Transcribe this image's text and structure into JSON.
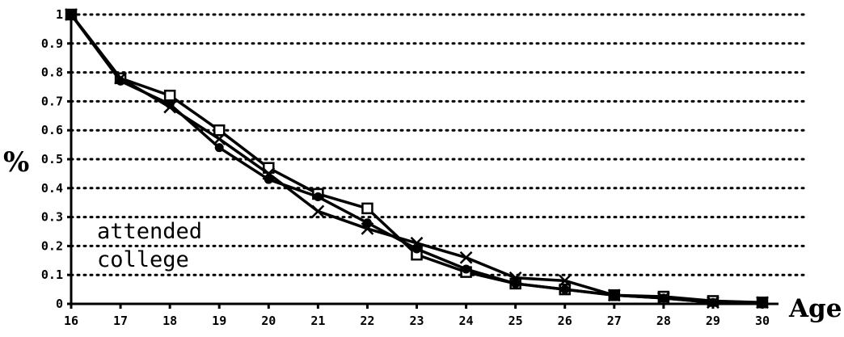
{
  "chart_data": {
    "type": "line",
    "xlabel": "Age",
    "ylabel": "%",
    "x": [
      16,
      17,
      18,
      19,
      20,
      21,
      22,
      23,
      24,
      25,
      26,
      27,
      28,
      29,
      30
    ],
    "xlim": [
      16,
      30
    ],
    "ylim": [
      0,
      1
    ],
    "yticks": [
      "0",
      "0.1",
      "0.2",
      "0.3",
      "0.4",
      "0.5",
      "0.6",
      "0.7",
      "0.8",
      "0.9",
      "1"
    ],
    "xticks": [
      "16",
      "17",
      "18",
      "19",
      "20",
      "21",
      "22",
      "23",
      "24",
      "25",
      "26",
      "27",
      "28",
      "29",
      "30"
    ],
    "grid": true,
    "annotation": {
      "line1": "attended",
      "line2": "college"
    },
    "series": [
      {
        "marker": "square",
        "values": [
          1.0,
          0.78,
          0.72,
          0.6,
          0.47,
          0.38,
          0.33,
          0.17,
          0.11,
          0.07,
          0.05,
          0.03,
          0.025,
          0.01,
          0.005
        ]
      },
      {
        "marker": "x",
        "values": [
          1.0,
          0.78,
          0.68,
          0.57,
          0.45,
          0.32,
          0.26,
          0.21,
          0.16,
          0.09,
          0.08,
          0.03,
          0.02,
          0.005,
          0.005
        ]
      },
      {
        "marker": "dot",
        "values": [
          1.0,
          0.77,
          0.69,
          0.54,
          0.43,
          0.37,
          0.28,
          0.19,
          0.12,
          0.07,
          0.05,
          0.03,
          0.02,
          0.005,
          0.005
        ]
      }
    ]
  }
}
